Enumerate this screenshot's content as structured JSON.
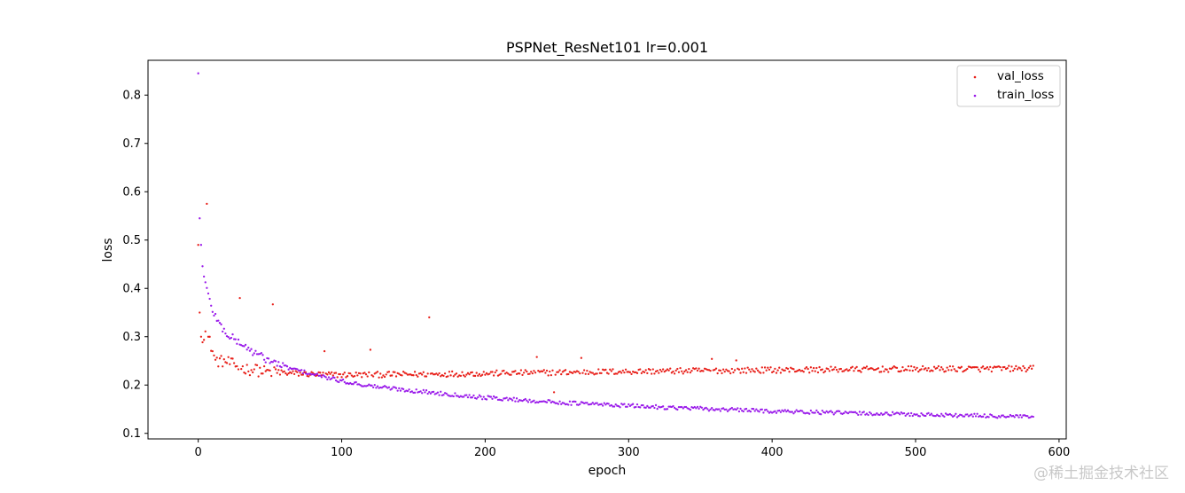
{
  "chart_data": {
    "type": "scatter",
    "title": "PSPNet_ResNet101 lr=0.001",
    "xlabel": "epoch",
    "ylabel": "loss",
    "xlim": [
      -35,
      605
    ],
    "ylim": [
      0.0885,
      0.872
    ],
    "xticks": [
      0,
      100,
      200,
      300,
      400,
      500,
      600
    ],
    "yticks": [
      0.1,
      0.2,
      0.3,
      0.4,
      0.5,
      0.6,
      0.7,
      0.8
    ],
    "grid": false,
    "legend_position": "upper right",
    "marker": "dot",
    "epochs": 583,
    "series": [
      {
        "name": "val_loss",
        "color": "#e8201a",
        "anchors": [
          [
            0,
            0.49
          ],
          [
            1,
            0.35
          ],
          [
            2,
            0.3
          ],
          [
            3,
            0.3
          ],
          [
            5,
            0.31
          ],
          [
            8,
            0.29
          ],
          [
            12,
            0.25
          ],
          [
            20,
            0.248
          ],
          [
            30,
            0.235
          ],
          [
            45,
            0.228
          ],
          [
            60,
            0.225
          ],
          [
            80,
            0.222
          ],
          [
            100,
            0.221
          ],
          [
            150,
            0.222
          ],
          [
            200,
            0.224
          ],
          [
            250,
            0.226
          ],
          [
            300,
            0.228
          ],
          [
            400,
            0.231
          ],
          [
            500,
            0.233
          ],
          [
            582,
            0.234
          ]
        ],
        "outliers": [
          [
            6,
            0.575
          ],
          [
            29,
            0.38
          ],
          [
            52,
            0.367
          ],
          [
            161,
            0.34
          ],
          [
            120,
            0.273
          ],
          [
            88,
            0.27
          ],
          [
            236,
            0.258
          ],
          [
            267,
            0.256
          ],
          [
            358,
            0.254
          ],
          [
            375,
            0.251
          ],
          [
            40,
            0.242
          ],
          [
            248,
            0.185
          ]
        ]
      },
      {
        "name": "train_loss",
        "color": "#9a1bea",
        "anchors": [
          [
            0,
            0.845
          ],
          [
            1,
            0.545
          ],
          [
            2,
            0.49
          ],
          [
            3,
            0.445
          ],
          [
            4,
            0.43
          ],
          [
            5,
            0.41
          ],
          [
            7,
            0.385
          ],
          [
            10,
            0.355
          ],
          [
            15,
            0.325
          ],
          [
            20,
            0.305
          ],
          [
            30,
            0.285
          ],
          [
            40,
            0.265
          ],
          [
            50,
            0.25
          ],
          [
            60,
            0.238
          ],
          [
            80,
            0.222
          ],
          [
            100,
            0.208
          ],
          [
            120,
            0.198
          ],
          [
            150,
            0.188
          ],
          [
            200,
            0.174
          ],
          [
            250,
            0.164
          ],
          [
            300,
            0.157
          ],
          [
            350,
            0.151
          ],
          [
            400,
            0.146
          ],
          [
            450,
            0.142
          ],
          [
            500,
            0.139
          ],
          [
            550,
            0.136
          ],
          [
            582,
            0.134
          ]
        ],
        "outliers": []
      }
    ]
  },
  "watermark": "@稀土掘金技术社区"
}
